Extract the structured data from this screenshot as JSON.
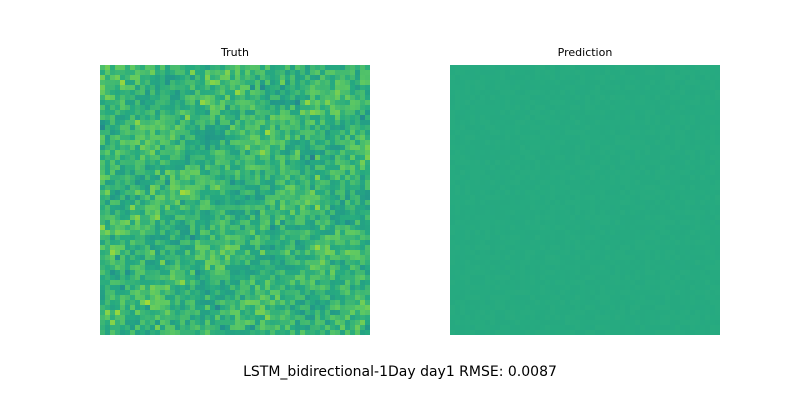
{
  "chart_data": [
    {
      "type": "heatmap",
      "title": "Truth",
      "grid_size": [
        54,
        54
      ],
      "colormap": "viridis",
      "base_value": 0.66,
      "variation": "high",
      "axes": "off"
    },
    {
      "type": "heatmap",
      "title": "Prediction",
      "grid_size": [
        54,
        54
      ],
      "colormap": "viridis",
      "base_value": 0.62,
      "variation": "very low",
      "axes": "off"
    }
  ],
  "suptitle": "LSTM_bidirectional-1Day day1 RMSE: 0.0087"
}
